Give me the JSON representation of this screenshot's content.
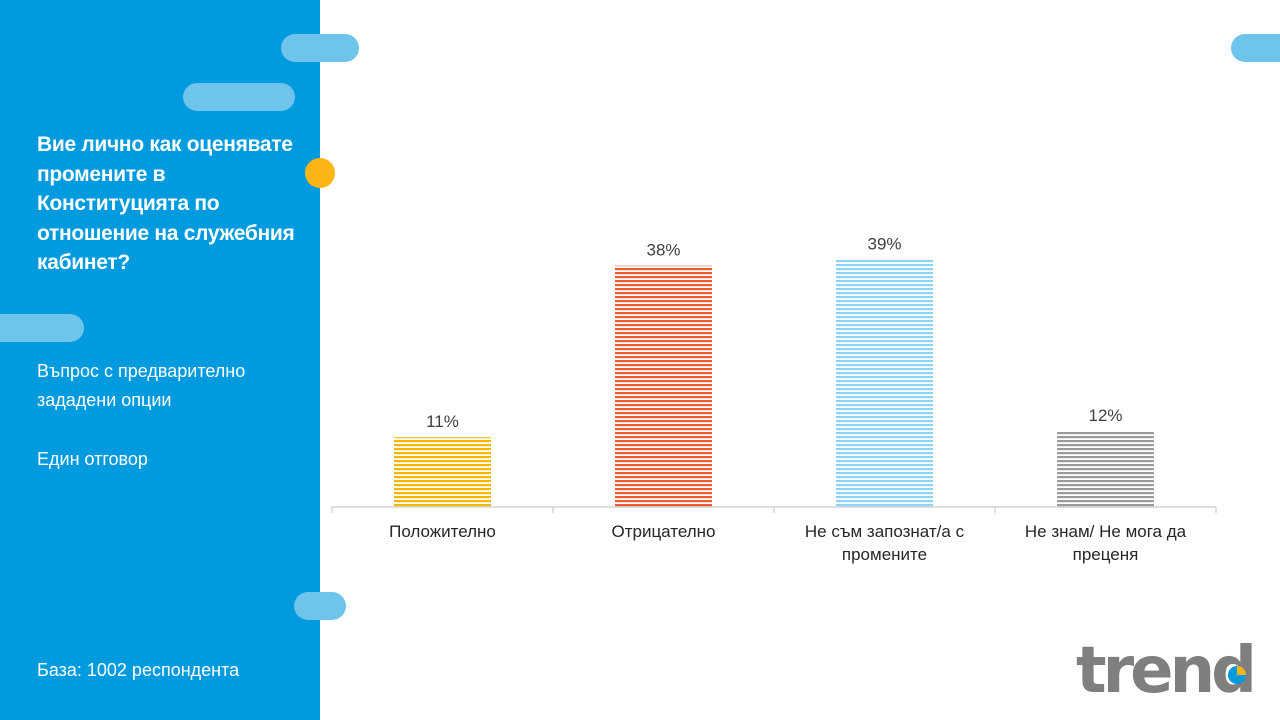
{
  "sidebar": {
    "question": "Вие лично как оценявате промените в Конституцията по отношение на служебния кабинет?",
    "note_line1": "Въпрос с предварително зададени опции",
    "note_line2": "Един отговор",
    "base": "База: 1002 респондента"
  },
  "colors": {
    "sidebar_bg": "#009ADE",
    "pill": "#6EC4EA",
    "dot": "#FDB515"
  },
  "logo": {
    "text": "trend"
  },
  "chart_data": {
    "type": "bar",
    "categories": [
      [
        "Положително"
      ],
      [
        "Отрицателно"
      ],
      [
        "Не съм запознат/а с",
        "промените"
      ],
      [
        "Не знам/ Не мога да",
        "преценя"
      ]
    ],
    "values": [
      11,
      38,
      39,
      12
    ],
    "value_labels": [
      "11%",
      "38%",
      "39%",
      "12%"
    ],
    "colors": [
      "#F2B705",
      "#EE5A2B",
      "#8CD3F5",
      "#9A9A9A"
    ],
    "ylim": [
      0,
      40
    ],
    "grid": false,
    "legend": "none"
  }
}
